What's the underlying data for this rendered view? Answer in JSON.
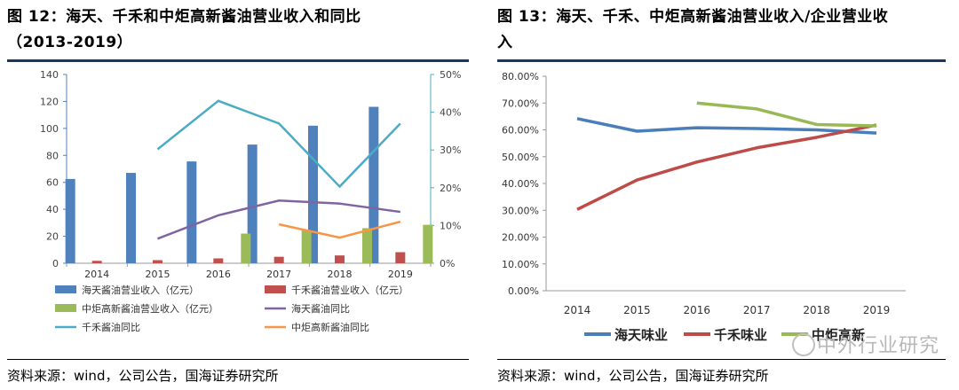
{
  "left": {
    "title_line1": "图 12：海天、千禾和中炬高新酱油营业收入和同比",
    "title_line2": "（2013-2019）",
    "source": "资料来源：wind，公司公告，国海证券研究所",
    "chart_data": {
      "type": "bar",
      "categories": [
        "2014",
        "2015",
        "2016",
        "2017",
        "2018",
        "2019"
      ],
      "ylim": [
        0,
        140
      ],
      "yticks": [
        0,
        20,
        40,
        60,
        80,
        100,
        120,
        140
      ],
      "y2lim": [
        0,
        50
      ],
      "y2ticks": [
        "0%",
        "10%",
        "20%",
        "30%",
        "40%",
        "50%"
      ],
      "series": [
        {
          "name": "海天酱油营业收入（亿元）",
          "kind": "bar",
          "color": "#4f81bd",
          "values": [
            62.5,
            67,
            75.5,
            88,
            102,
            116
          ]
        },
        {
          "name": "千禾酱油营业收入（亿元）",
          "kind": "bar",
          "color": "#c0504d",
          "values": [
            1.8,
            2.3,
            3.6,
            4.8,
            5.8,
            8.2
          ]
        },
        {
          "name": "中炬高新酱油营业收入（亿元）",
          "kind": "bar",
          "color": "#9bbb59",
          "values": [
            null,
            null,
            22,
            24.5,
            26,
            28.5
          ]
        },
        {
          "name": "海天酱油同比",
          "kind": "line",
          "axis": "right",
          "color": "#8064a2",
          "values": [
            null,
            6.5,
            12.7,
            16.6,
            15.8,
            13.6
          ]
        },
        {
          "name": "千禾酱油同比",
          "kind": "line",
          "axis": "right",
          "color": "#4bacc6",
          "values": [
            null,
            30.2,
            43,
            37,
            20.3,
            37
          ]
        },
        {
          "name": "中炬高新酱油同比",
          "kind": "line",
          "axis": "right",
          "color": "#f79646",
          "values": [
            null,
            null,
            null,
            10.3,
            6.8,
            11
          ]
        }
      ]
    }
  },
  "right": {
    "title_line1": "图 13：海天、千禾、中炬高新酱油营业收入/企业营业收",
    "title_line2": "入",
    "source": "资料来源：wind，公司公告，国海证券研究所",
    "chart_data": {
      "type": "line",
      "categories": [
        "2014",
        "2015",
        "2016",
        "2017",
        "2018",
        "2019"
      ],
      "ylim": [
        0,
        80
      ],
      "yticks": [
        "0.00%",
        "10.00%",
        "20.00%",
        "30.00%",
        "40.00%",
        "50.00%",
        "60.00%",
        "70.00%",
        "80.00%"
      ],
      "series": [
        {
          "name": "海天味业",
          "color": "#4a7ebb",
          "values": [
            64.2,
            59.5,
            60.8,
            60.5,
            60,
            58.8
          ]
        },
        {
          "name": "千禾味业",
          "color": "#be4b48",
          "values": [
            30.3,
            41.3,
            48,
            53.3,
            57.2,
            61.8
          ]
        },
        {
          "name": "中炬高新",
          "color": "#98b954",
          "values": [
            null,
            null,
            70,
            67.8,
            62,
            61.5
          ]
        }
      ]
    }
  },
  "watermark": "中外行业研究"
}
